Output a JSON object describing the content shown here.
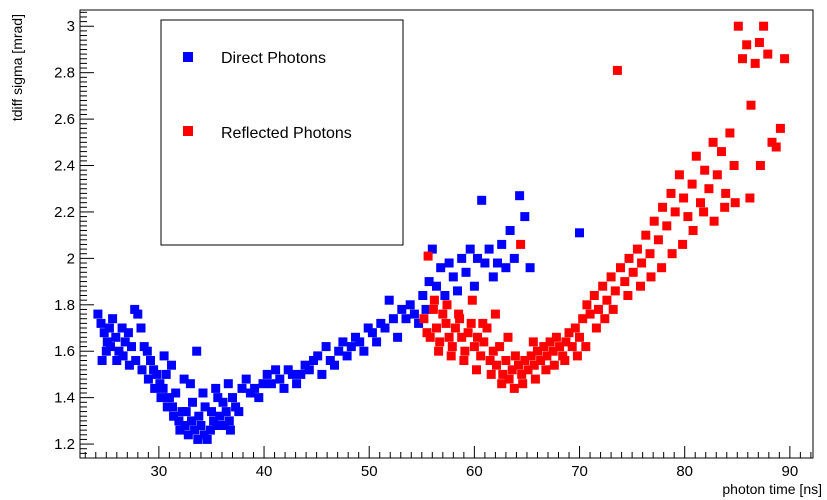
{
  "chart_data": {
    "type": "scatter",
    "xlabel": "photon time [ns]",
    "ylabel": "tdiff sigma [mrad]",
    "xlim": [
      22.5,
      92.2
    ],
    "ylim": [
      1.14,
      3.07
    ],
    "xticks": [
      30,
      40,
      50,
      60,
      70,
      80,
      90
    ],
    "yticks": [
      1.2,
      1.4,
      1.6,
      1.8,
      2,
      2.2,
      2.4,
      2.6,
      2.8,
      3
    ],
    "grid": false,
    "legend_position": "top-left",
    "series": [
      {
        "name": "Direct Photons",
        "color": "#0000ff",
        "marker": "square",
        "points": [
          [
            24.2,
            1.76
          ],
          [
            24.5,
            1.72
          ],
          [
            24.8,
            1.68
          ],
          [
            25.1,
            1.64
          ],
          [
            25.3,
            1.7
          ],
          [
            25.6,
            1.74
          ],
          [
            25.9,
            1.66
          ],
          [
            26.2,
            1.6
          ],
          [
            26.5,
            1.7
          ],
          [
            26.8,
            1.64
          ],
          [
            27.1,
            1.68
          ],
          [
            27.4,
            1.62
          ],
          [
            27.7,
            1.78
          ],
          [
            28.0,
            1.76
          ],
          [
            28.3,
            1.7
          ],
          [
            28.6,
            1.62
          ],
          [
            28.9,
            1.6
          ],
          [
            29.2,
            1.56
          ],
          [
            29.5,
            1.52
          ],
          [
            29.8,
            1.5
          ],
          [
            30.1,
            1.46
          ],
          [
            30.4,
            1.44
          ],
          [
            30.7,
            1.5
          ],
          [
            31.0,
            1.4
          ],
          [
            31.3,
            1.36
          ],
          [
            31.6,
            1.42
          ],
          [
            31.9,
            1.3
          ],
          [
            32.2,
            1.34
          ],
          [
            32.5,
            1.28
          ],
          [
            32.8,
            1.24
          ],
          [
            33.1,
            1.3
          ],
          [
            33.4,
            1.26
          ],
          [
            33.7,
            1.22
          ],
          [
            34.0,
            1.28
          ],
          [
            34.3,
            1.24
          ],
          [
            34.6,
            1.22
          ],
          [
            34.9,
            1.26
          ],
          [
            35.2,
            1.3
          ],
          [
            35.5,
            1.28
          ],
          [
            35.8,
            1.32
          ],
          [
            36.1,
            1.38
          ],
          [
            36.4,
            1.34
          ],
          [
            36.7,
            1.3
          ],
          [
            37.0,
            1.4
          ],
          [
            37.3,
            1.36
          ],
          [
            37.6,
            1.34
          ],
          [
            37.9,
            1.44
          ],
          [
            38.3,
            1.48
          ],
          [
            38.7,
            1.42
          ],
          [
            39.1,
            1.44
          ],
          [
            39.5,
            1.4
          ],
          [
            39.9,
            1.46
          ],
          [
            40.3,
            1.5
          ],
          [
            40.7,
            1.46
          ],
          [
            41.1,
            1.52
          ],
          [
            41.5,
            1.48
          ],
          [
            41.9,
            1.44
          ],
          [
            42.3,
            1.52
          ],
          [
            42.7,
            1.5
          ],
          [
            43.1,
            1.46
          ],
          [
            43.5,
            1.5
          ],
          [
            43.9,
            1.54
          ],
          [
            44.3,
            1.52
          ],
          [
            44.7,
            1.56
          ],
          [
            45.1,
            1.58
          ],
          [
            45.5,
            1.5
          ],
          [
            45.9,
            1.62
          ],
          [
            46.3,
            1.56
          ],
          [
            46.7,
            1.54
          ],
          [
            47.1,
            1.6
          ],
          [
            47.5,
            1.64
          ],
          [
            47.9,
            1.58
          ],
          [
            48.3,
            1.62
          ],
          [
            48.7,
            1.66
          ],
          [
            49.1,
            1.64
          ],
          [
            49.5,
            1.6
          ],
          [
            49.9,
            1.7
          ],
          [
            50.3,
            1.68
          ],
          [
            50.7,
            1.64
          ],
          [
            51.1,
            1.72
          ],
          [
            51.5,
            1.7
          ],
          [
            51.9,
            1.82
          ],
          [
            52.3,
            1.74
          ],
          [
            52.7,
            1.66
          ],
          [
            53.1,
            1.78
          ],
          [
            53.5,
            1.74
          ],
          [
            53.9,
            1.8
          ],
          [
            54.3,
            1.76
          ],
          [
            54.7,
            1.72
          ],
          [
            55.1,
            1.84
          ],
          [
            55.4,
            1.78
          ],
          [
            55.7,
            1.9
          ],
          [
            56.0,
            2.04
          ],
          [
            56.4,
            1.88
          ],
          [
            56.8,
            1.96
          ],
          [
            57.2,
            1.84
          ],
          [
            57.6,
            1.98
          ],
          [
            58.0,
            1.92
          ],
          [
            58.4,
            1.86
          ],
          [
            58.8,
            2.0
          ],
          [
            59.2,
            1.94
          ],
          [
            59.6,
            2.04
          ],
          [
            60.0,
            1.88
          ],
          [
            60.3,
            2.0
          ],
          [
            60.7,
            2.25
          ],
          [
            61.0,
            1.98
          ],
          [
            61.4,
            2.04
          ],
          [
            61.8,
            1.92
          ],
          [
            62.2,
            1.98
          ],
          [
            62.6,
            2.06
          ],
          [
            63.0,
            1.96
          ],
          [
            63.4,
            2.12
          ],
          [
            63.8,
            2.0
          ],
          [
            64.3,
            2.27
          ],
          [
            64.8,
            2.18
          ],
          [
            65.3,
            1.96
          ],
          [
            70.0,
            2.11
          ],
          [
            24.6,
            1.56
          ],
          [
            25.0,
            1.6
          ],
          [
            25.4,
            1.62
          ],
          [
            26.0,
            1.56
          ],
          [
            26.6,
            1.58
          ],
          [
            27.2,
            1.54
          ],
          [
            27.8,
            1.56
          ],
          [
            28.4,
            1.52
          ],
          [
            29.0,
            1.48
          ],
          [
            29.6,
            1.44
          ],
          [
            30.2,
            1.4
          ],
          [
            30.8,
            1.36
          ],
          [
            31.4,
            1.32
          ],
          [
            32.0,
            1.26
          ],
          [
            32.6,
            1.34
          ],
          [
            33.2,
            1.38
          ],
          [
            33.8,
            1.32
          ],
          [
            34.4,
            1.36
          ],
          [
            35.0,
            1.34
          ],
          [
            35.6,
            1.4
          ],
          [
            36.2,
            1.28
          ],
          [
            36.8,
            1.26
          ],
          [
            30.5,
            1.58
          ],
          [
            31.2,
            1.54
          ],
          [
            32.4,
            1.48
          ],
          [
            33.0,
            1.46
          ],
          [
            33.6,
            1.6
          ],
          [
            34.2,
            1.42
          ],
          [
            35.4,
            1.44
          ],
          [
            36.6,
            1.46
          ]
        ]
      },
      {
        "name": "Reflected Photons",
        "color": "#ff0000",
        "marker": "square",
        "points": [
          [
            55.2,
            1.74
          ],
          [
            55.5,
            1.68
          ],
          [
            55.8,
            1.66
          ],
          [
            56.1,
            1.78
          ],
          [
            56.4,
            1.7
          ],
          [
            56.7,
            1.64
          ],
          [
            57.0,
            1.76
          ],
          [
            57.3,
            1.72
          ],
          [
            57.6,
            1.66
          ],
          [
            57.9,
            1.62
          ],
          [
            58.2,
            1.7
          ],
          [
            58.5,
            1.76
          ],
          [
            58.8,
            1.66
          ],
          [
            59.1,
            1.6
          ],
          [
            59.4,
            1.68
          ],
          [
            59.7,
            1.72
          ],
          [
            60.0,
            1.62
          ],
          [
            60.3,
            1.66
          ],
          [
            60.6,
            1.58
          ],
          [
            60.9,
            1.64
          ],
          [
            61.2,
            1.7
          ],
          [
            61.5,
            1.56
          ],
          [
            61.8,
            1.6
          ],
          [
            62.1,
            1.54
          ],
          [
            62.4,
            1.62
          ],
          [
            62.7,
            1.5
          ],
          [
            63.0,
            1.56
          ],
          [
            63.3,
            1.48
          ],
          [
            63.6,
            1.52
          ],
          [
            63.9,
            1.58
          ],
          [
            64.2,
            1.54
          ],
          [
            64.5,
            1.5
          ],
          [
            64.8,
            1.56
          ],
          [
            65.1,
            1.52
          ],
          [
            65.4,
            1.58
          ],
          [
            65.7,
            1.54
          ],
          [
            66.0,
            1.6
          ],
          [
            66.3,
            1.56
          ],
          [
            66.6,
            1.62
          ],
          [
            66.9,
            1.58
          ],
          [
            67.2,
            1.64
          ],
          [
            67.5,
            1.6
          ],
          [
            67.8,
            1.66
          ],
          [
            68.1,
            1.62
          ],
          [
            68.4,
            1.58
          ],
          [
            68.7,
            1.64
          ],
          [
            69.0,
            1.68
          ],
          [
            69.3,
            1.62
          ],
          [
            69.6,
            1.7
          ],
          [
            70.0,
            1.66
          ],
          [
            70.3,
            1.74
          ],
          [
            70.7,
            1.8
          ],
          [
            71.0,
            1.76
          ],
          [
            71.4,
            1.84
          ],
          [
            71.8,
            1.78
          ],
          [
            72.2,
            1.88
          ],
          [
            72.6,
            1.82
          ],
          [
            73.0,
            1.92
          ],
          [
            73.4,
            1.86
          ],
          [
            73.6,
            2.81
          ],
          [
            73.9,
            1.96
          ],
          [
            74.3,
            1.9
          ],
          [
            74.7,
            2.0
          ],
          [
            75.1,
            1.94
          ],
          [
            75.5,
            2.04
          ],
          [
            75.9,
            1.98
          ],
          [
            76.3,
            2.1
          ],
          [
            76.7,
            2.02
          ],
          [
            77.1,
            2.16
          ],
          [
            77.5,
            2.08
          ],
          [
            77.9,
            2.22
          ],
          [
            78.3,
            2.14
          ],
          [
            78.7,
            2.28
          ],
          [
            79.1,
            2.2
          ],
          [
            79.5,
            2.36
          ],
          [
            79.9,
            2.26
          ],
          [
            80.3,
            2.18
          ],
          [
            80.7,
            2.32
          ],
          [
            81.1,
            2.44
          ],
          [
            81.5,
            2.24
          ],
          [
            81.9,
            2.38
          ],
          [
            82.3,
            2.3
          ],
          [
            82.7,
            2.5
          ],
          [
            83.1,
            2.36
          ],
          [
            83.5,
            2.46
          ],
          [
            83.9,
            2.28
          ],
          [
            84.3,
            2.54
          ],
          [
            84.7,
            2.4
          ],
          [
            85.1,
            3.0
          ],
          [
            85.5,
            2.86
          ],
          [
            85.9,
            2.92
          ],
          [
            86.3,
            2.66
          ],
          [
            86.7,
            2.84
          ],
          [
            87.1,
            2.93
          ],
          [
            87.5,
            3.0
          ],
          [
            87.9,
            2.88
          ],
          [
            88.3,
            2.5
          ],
          [
            88.7,
            2.48
          ],
          [
            89.1,
            2.56
          ],
          [
            89.5,
            2.86
          ],
          [
            55.6,
            2.01
          ],
          [
            56.2,
            1.82
          ],
          [
            57.4,
            1.8
          ],
          [
            58.6,
            1.74
          ],
          [
            59.8,
            1.82
          ],
          [
            60.8,
            1.72
          ],
          [
            62.0,
            1.76
          ],
          [
            63.2,
            1.66
          ],
          [
            64.4,
            2.06
          ],
          [
            65.6,
            1.64
          ],
          [
            62.6,
            1.46
          ],
          [
            63.8,
            1.44
          ],
          [
            64.6,
            1.46
          ],
          [
            61.6,
            1.5
          ],
          [
            60.2,
            1.52
          ],
          [
            59.0,
            1.56
          ],
          [
            57.8,
            1.58
          ],
          [
            56.6,
            1.6
          ],
          [
            65.8,
            1.48
          ],
          [
            66.8,
            1.52
          ],
          [
            67.6,
            1.54
          ],
          [
            68.6,
            1.56
          ],
          [
            69.8,
            1.58
          ],
          [
            70.6,
            1.62
          ],
          [
            71.6,
            1.7
          ],
          [
            72.4,
            1.74
          ],
          [
            73.2,
            1.78
          ],
          [
            74.6,
            1.84
          ],
          [
            75.8,
            1.88
          ],
          [
            76.8,
            1.92
          ],
          [
            77.8,
            1.96
          ],
          [
            78.8,
            2.02
          ],
          [
            79.8,
            2.06
          ],
          [
            80.8,
            2.12
          ],
          [
            81.8,
            2.2
          ],
          [
            82.8,
            2.16
          ],
          [
            83.8,
            2.22
          ],
          [
            84.8,
            2.24
          ],
          [
            86.2,
            2.26
          ],
          [
            87.2,
            2.4
          ]
        ]
      }
    ]
  }
}
